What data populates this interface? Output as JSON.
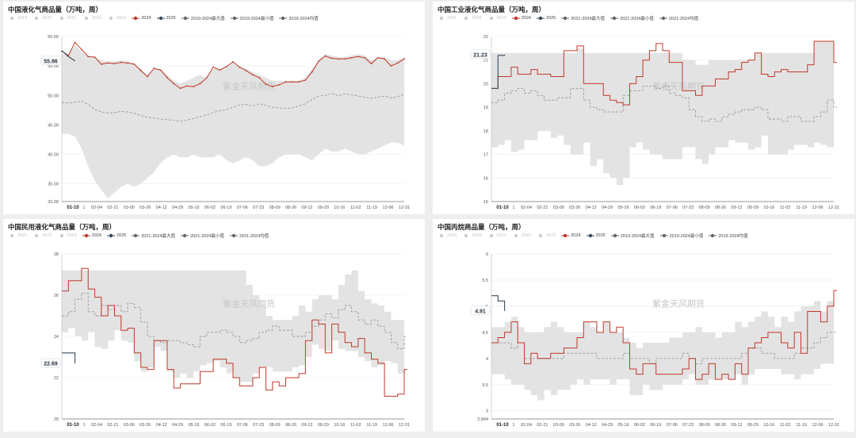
{
  "watermark": "紫金天风期货",
  "colors": {
    "band": "#e3e3e3",
    "series_2024": "#c0392b",
    "series_2025": "#3b4a5c",
    "average": "#999999",
    "inactive_legend": "#cccccc",
    "grid": "#eeeeee"
  },
  "chart_data": [
    {
      "type": "line",
      "title": "中国液化气商品量（万吨，周）",
      "legend": [
        {
          "label": "2019",
          "active": false,
          "kind": "point"
        },
        {
          "label": "2020",
          "active": false,
          "kind": "point"
        },
        {
          "label": "2021",
          "active": false,
          "kind": "point"
        },
        {
          "label": "2022",
          "active": false,
          "kind": "point"
        },
        {
          "label": "2023",
          "active": false,
          "kind": "point"
        },
        {
          "label": "2024",
          "active": true,
          "kind": "red"
        },
        {
          "label": "2025",
          "active": true,
          "kind": "navy"
        },
        {
          "label": "2019-2024最大值",
          "active": true,
          "kind": "gray"
        },
        {
          "label": "2019-2024最小值",
          "active": true,
          "kind": "gray"
        },
        {
          "label": "2019-2024均值",
          "active": true,
          "kind": "gray"
        }
      ],
      "ylim": [
        32,
        60
      ],
      "yticks": [
        32,
        35,
        40,
        45,
        50,
        55,
        60
      ],
      "ytick_labels": [
        "32.00",
        "35.00",
        "40.00",
        "45.00",
        "50.00",
        "55.00",
        "60.00"
      ],
      "step": false,
      "xtick_labels": [
        "01-10",
        "1",
        "02-04",
        "02-21",
        "03-09",
        "03-26",
        "04-12",
        "04-29",
        "05-16",
        "06-02",
        "06-19",
        "07-06",
        "07-23",
        "08-09",
        "08-26",
        "09-12",
        "09-29",
        "10-16",
        "11-02",
        "11-19",
        "12-06",
        "12-31"
      ],
      "callout": "55.86",
      "series_2024": [
        57.5,
        56.8,
        59.0,
        57.8,
        56.6,
        56.5,
        55.3,
        55.5,
        55.4,
        55.6,
        55.5,
        55.3,
        54.2,
        53.2,
        54.6,
        54.3,
        53.0,
        52.0,
        51.2,
        51.6,
        51.5,
        52.0,
        53.0,
        54.8,
        54.3,
        54.9,
        55.7,
        54.8,
        54.2,
        53.5,
        53.0,
        51.9,
        51.5,
        51.8,
        52.3,
        52.3,
        52.3,
        52.6,
        54.0,
        55.8,
        56.7,
        56.3,
        56.2,
        56.2,
        56.4,
        56.6,
        56.4,
        55.4,
        56.4,
        56.2,
        55.0,
        55.5,
        56.2
      ],
      "series_2025": [
        57.6,
        56.6,
        55.86
      ],
      "average": [
        48.8,
        48.7,
        48.9,
        49.0,
        48.5,
        47.6,
        47.2,
        47.0,
        47.1,
        47.3,
        47.2,
        47.0,
        46.6,
        46.3,
        46.2,
        46.0,
        45.9,
        45.8,
        45.6,
        45.8,
        46.1,
        46.4,
        46.7,
        47.1,
        47.4,
        47.6,
        48.0,
        48.4,
        48.5,
        48.2,
        48.6,
        48.3,
        48.0,
        47.9,
        47.8,
        47.9,
        48.2,
        48.6,
        49.3,
        49.9,
        50.0,
        50.4,
        49.9,
        50.3,
        50.1,
        49.9,
        49.7,
        49.5,
        49.7,
        49.9,
        49.6,
        49.8,
        50.2
      ],
      "band_max": [
        57.0,
        57.0,
        58.5,
        57.5,
        56.5,
        56.5,
        56.0,
        55.8,
        55.8,
        56.0,
        55.8,
        55.5,
        54.5,
        53.5,
        54.5,
        54.5,
        53.5,
        52.5,
        52.0,
        52.5,
        53.0,
        53.5,
        53.0,
        54.5,
        54.5,
        55.0,
        55.5,
        55.0,
        54.5,
        54.0,
        53.5,
        53.0,
        52.5,
        52.5,
        52.5,
        52.5,
        52.5,
        53.0,
        54.5,
        56.0,
        57.0,
        56.8,
        56.5,
        56.5,
        56.8,
        57.0,
        56.8,
        56.0,
        56.5,
        56.5,
        56.0,
        56.0,
        56.5
      ],
      "band_min": [
        43.5,
        43.5,
        43.0,
        41.0,
        38.0,
        35.5,
        34.0,
        32.5,
        33.5,
        34.5,
        35.0,
        34.5,
        35.0,
        36.0,
        37.0,
        38.5,
        39.5,
        40.0,
        39.5,
        39.5,
        40.0,
        39.5,
        39.5,
        39.5,
        40.0,
        39.0,
        38.5,
        39.0,
        39.5,
        39.0,
        38.0,
        38.0,
        38.5,
        39.5,
        40.0,
        40.0,
        40.0,
        39.5,
        39.0,
        40.0,
        41.0,
        40.5,
        40.5,
        41.0,
        40.5,
        40.0,
        40.0,
        40.5,
        41.0,
        41.5,
        42.0,
        42.0,
        41.5
      ]
    },
    {
      "type": "line",
      "title": "中国工业液化气商品量（万吨，周）",
      "legend": [
        {
          "label": "2021",
          "active": false,
          "kind": "point"
        },
        {
          "label": "2022",
          "active": false,
          "kind": "point"
        },
        {
          "label": "2023",
          "active": false,
          "kind": "point"
        },
        {
          "label": "2024",
          "active": true,
          "kind": "red"
        },
        {
          "label": "2025",
          "active": true,
          "kind": "navy"
        },
        {
          "label": "2021-2024最大值",
          "active": true,
          "kind": "gray"
        },
        {
          "label": "2021-2024最小值",
          "active": true,
          "kind": "gray"
        },
        {
          "label": "2021-2024均值",
          "active": true,
          "kind": "gray"
        }
      ],
      "ylim": [
        15,
        22
      ],
      "yticks": [
        15,
        16,
        17,
        18,
        19,
        20,
        21,
        22
      ],
      "ytick_labels": [
        "15",
        "16",
        "17",
        "18",
        "19",
        "20",
        "21",
        "22"
      ],
      "step": true,
      "xtick_labels": [
        "01-10",
        "1",
        "02-04",
        "02-21",
        "03-09",
        "03-26",
        "04-12",
        "04-29",
        "05-16",
        "06-02",
        "06-19",
        "07-06",
        "07-23",
        "08-09",
        "08-26",
        "09-12",
        "09-29",
        "10-16",
        "11-02",
        "11-19",
        "12-06",
        "12-31"
      ],
      "callout": "21.23",
      "series_2024": [
        19.8,
        20.3,
        20.3,
        20.7,
        20.4,
        20.4,
        20.6,
        20.4,
        20.4,
        20.3,
        20.3,
        21.4,
        21.4,
        21.6,
        20.0,
        20.0,
        20.0,
        19.5,
        19.3,
        19.2,
        19.1,
        20.0,
        20.3,
        21.0,
        21.4,
        21.7,
        21.4,
        20.9,
        20.9,
        19.7,
        19.7,
        19.5,
        19.9,
        19.9,
        20.2,
        20.2,
        20.5,
        20.6,
        20.9,
        21.0,
        21.3,
        20.4,
        20.3,
        20.5,
        20.6,
        20.5,
        20.5,
        20.5,
        20.8,
        21.8,
        21.8,
        21.8,
        20.9
      ],
      "series_2025": [
        19.8,
        21.2,
        21.23
      ],
      "average": [
        19.2,
        19.3,
        19.6,
        19.7,
        19.8,
        19.6,
        19.7,
        19.5,
        19.3,
        19.3,
        19.4,
        19.4,
        19.8,
        19.8,
        19.3,
        19.0,
        18.9,
        18.8,
        18.8,
        18.8,
        19.5,
        19.7,
        19.7,
        19.9,
        19.9,
        19.8,
        19.9,
        19.6,
        19.5,
        19.4,
        18.9,
        18.6,
        18.4,
        18.5,
        18.4,
        18.6,
        18.7,
        18.8,
        18.9,
        18.9,
        19.0,
        18.9,
        18.5,
        18.5,
        18.4,
        18.6,
        18.6,
        18.4,
        18.4,
        18.6,
        18.8,
        19.3,
        19.0
      ],
      "band_max": [
        21.3,
        21.3,
        21.3,
        21.3,
        21.3,
        21.3,
        21.3,
        21.3,
        21.3,
        21.3,
        21.3,
        21.3,
        21.3,
        21.5,
        21.3,
        21.3,
        21.3,
        21.3,
        21.3,
        21.3,
        21.3,
        21.3,
        21.3,
        21.3,
        21.3,
        21.3,
        21.3,
        21.3,
        21.3,
        21.0,
        21.0,
        20.8,
        20.8,
        21.0,
        21.0,
        21.0,
        21.0,
        21.0,
        21.0,
        21.0,
        21.3,
        21.3,
        21.3,
        21.3,
        21.3,
        21.3,
        21.3,
        21.3,
        21.3,
        21.8,
        21.8,
        21.8,
        21.3
      ],
      "band_min": [
        17.3,
        17.4,
        17.6,
        17.1,
        17.2,
        17.6,
        17.6,
        18.0,
        18.0,
        17.7,
        17.8,
        17.4,
        17.0,
        17.0,
        17.5,
        16.5,
        16.8,
        16.2,
        16.0,
        15.7,
        16.0,
        17.3,
        17.5,
        17.2,
        17.0,
        17.0,
        16.8,
        16.8,
        16.8,
        17.3,
        17.3,
        16.8,
        16.6,
        17.0,
        17.3,
        17.3,
        17.6,
        17.5,
        17.5,
        17.2,
        17.3,
        17.8,
        17.0,
        17.0,
        17.0,
        17.2,
        17.4,
        17.4,
        17.3,
        17.5,
        17.4,
        17.3,
        17.4
      ]
    },
    {
      "type": "line",
      "title": "中国民用液化气商品量（万吨，周）",
      "legend": [
        {
          "label": "2021",
          "active": false,
          "kind": "point"
        },
        {
          "label": "2022",
          "active": false,
          "kind": "point"
        },
        {
          "label": "2023",
          "active": false,
          "kind": "point"
        },
        {
          "label": "2024",
          "active": true,
          "kind": "red"
        },
        {
          "label": "2025",
          "active": true,
          "kind": "navy"
        },
        {
          "label": "2021-2024最大值",
          "active": true,
          "kind": "gray"
        },
        {
          "label": "2021-2024最小值",
          "active": true,
          "kind": "gray"
        },
        {
          "label": "2021-2024均值",
          "active": true,
          "kind": "gray"
        }
      ],
      "ylim": [
        20,
        28
      ],
      "yticks": [
        20,
        22,
        24,
        26,
        28
      ],
      "ytick_labels": [
        "20",
        "22",
        "24",
        "26",
        "28"
      ],
      "step": true,
      "xtick_labels": [
        "01-10",
        "1",
        "02-04",
        "02-21",
        "03-09",
        "03-26",
        "04-12",
        "04-29",
        "05-16",
        "06-02",
        "06-19",
        "07-06",
        "07-23",
        "08-09",
        "08-26",
        "09-12",
        "09-29",
        "10-16",
        "11-02",
        "11-19",
        "12-06",
        "12-31"
      ],
      "callout": "22.69",
      "series_2024": [
        26.2,
        26.7,
        26.7,
        27.3,
        26.3,
        25.9,
        25.0,
        25.5,
        25.0,
        24.3,
        24.4,
        23.2,
        22.5,
        22.4,
        23.8,
        23.8,
        22.4,
        21.5,
        21.7,
        21.7,
        21.7,
        22.3,
        22.3,
        22.9,
        22.9,
        22.7,
        22.0,
        21.6,
        21.6,
        22.0,
        22.5,
        21.4,
        21.8,
        21.6,
        22.0,
        22.0,
        22.2,
        23.8,
        24.8,
        24.6,
        23.2,
        24.6,
        24.2,
        23.7,
        23.5,
        23.9,
        23.2,
        22.9,
        22.7,
        21.1,
        21.1,
        21.2,
        22.4
      ],
      "series_2025": [
        23.2,
        23.2,
        22.69
      ],
      "average": [
        25.0,
        25.2,
        25.8,
        26.1,
        25.2,
        25.0,
        25.5,
        25.3,
        25.5,
        25.2,
        25.6,
        25.4,
        24.7,
        24.0,
        23.8,
        23.7,
        23.8,
        23.8,
        23.7,
        23.6,
        23.5,
        24.0,
        24.2,
        24.2,
        24.3,
        24.2,
        24.0,
        23.7,
        23.8,
        23.9,
        24.2,
        24.3,
        24.5,
        24.3,
        24.3,
        24.0,
        24.0,
        24.2,
        24.5,
        24.8,
        25.1,
        24.9,
        25.3,
        25.5,
        25.2,
        24.8,
        24.6,
        24.8,
        24.5,
        24.2,
        23.7,
        23.4,
        24.0
      ],
      "band_max": [
        27.2,
        27.2,
        27.2,
        27.2,
        27.2,
        27.2,
        27.2,
        27.2,
        27.2,
        27.2,
        27.2,
        27.2,
        27.2,
        27.2,
        27.2,
        27.2,
        27.2,
        27.2,
        27.2,
        27.2,
        27.2,
        27.2,
        27.2,
        27.2,
        27.2,
        27.2,
        27.2,
        27.2,
        26.5,
        26.0,
        25.5,
        25.0,
        24.8,
        24.8,
        24.8,
        25.0,
        25.5,
        25.2,
        25.8,
        26.0,
        26.0,
        25.8,
        26.5,
        27.0,
        27.2,
        26.2,
        25.8,
        25.6,
        25.5,
        25.2,
        24.8,
        24.8,
        26.2
      ],
      "band_max_note": "",
      "band_min": [
        24.2,
        24.4,
        24.0,
        23.8,
        24.2,
        23.5,
        23.4,
        23.8,
        24.3,
        23.8,
        23.7,
        22.8,
        22.3,
        22.5,
        23.5,
        23.3,
        22.3,
        22.0,
        22.2,
        22.0,
        22.3,
        22.6,
        22.7,
        22.8,
        22.5,
        22.2,
        22.0,
        21.8,
        21.8,
        22.2,
        22.5,
        22.5,
        22.3,
        22.3,
        22.3,
        22.5,
        22.6,
        23.0,
        23.6,
        23.4,
        23.3,
        23.8,
        23.4,
        23.3,
        23.3,
        23.0,
        22.8,
        22.5,
        22.6,
        22.8,
        22.7,
        22.2,
        22.5
      ]
    },
    {
      "type": "line",
      "title": "中国丙烷商品量（万吨，周）",
      "legend": [
        {
          "label": "2019",
          "active": false,
          "kind": "point"
        },
        {
          "label": "2020",
          "active": false,
          "kind": "point"
        },
        {
          "label": "2021",
          "active": false,
          "kind": "point"
        },
        {
          "label": "2022",
          "active": false,
          "kind": "point"
        },
        {
          "label": "2023",
          "active": false,
          "kind": "point"
        },
        {
          "label": "2024",
          "active": true,
          "kind": "red"
        },
        {
          "label": "2025",
          "active": true,
          "kind": "navy"
        },
        {
          "label": "2019-2024最大值",
          "active": true,
          "kind": "gray"
        },
        {
          "label": "2019-2024最小值",
          "active": true,
          "kind": "gray"
        },
        {
          "label": "2019-2024均值",
          "active": true,
          "kind": "gray"
        }
      ],
      "ylim": [
        2.844,
        6
      ],
      "yticks": [
        2.844,
        3,
        3.5,
        4,
        4.5,
        5,
        5.5,
        6
      ],
      "ytick_labels": [
        "2.844",
        "3",
        "3.5",
        "4",
        "4.5",
        "5",
        "5.5",
        "6"
      ],
      "step": true,
      "xtick_labels": [
        "01-10",
        "1",
        "02-04",
        "02-21",
        "03-09",
        "03-26",
        "04-12",
        "04-29",
        "05-16",
        "06-02",
        "06-19",
        "07-06",
        "07-23",
        "08-09",
        "08-26",
        "09-12",
        "09-29",
        "10-16",
        "11-02",
        "11-19",
        "12-06",
        "12-31"
      ],
      "callout": "4.91",
      "series_2024": [
        4.3,
        4.4,
        4.5,
        4.7,
        4.3,
        3.9,
        4.1,
        4.0,
        4.0,
        4.1,
        4.1,
        4.2,
        4.2,
        4.4,
        4.7,
        4.7,
        4.5,
        4.7,
        4.5,
        4.6,
        4.3,
        3.8,
        3.7,
        3.9,
        3.9,
        3.7,
        3.7,
        3.7,
        3.7,
        3.8,
        4.0,
        3.6,
        3.7,
        3.9,
        3.6,
        3.7,
        3.6,
        3.9,
        3.7,
        4.2,
        4.3,
        4.4,
        4.5,
        4.5,
        4.3,
        4.2,
        4.5,
        4.1,
        4.9,
        4.9,
        4.7,
        5.0,
        5.3
      ],
      "series_2025": [
        5.2,
        5.1,
        4.91
      ],
      "average": [
        4.3,
        4.3,
        4.3,
        4.2,
        4.3,
        4.0,
        4.0,
        4.0,
        4.0,
        4.0,
        4.0,
        4.1,
        4.1,
        4.1,
        4.1,
        4.1,
        4.0,
        4.0,
        4.0,
        4.0,
        4.1,
        4.0,
        4.0,
        4.0,
        3.9,
        4.0,
        4.0,
        4.0,
        4.0,
        4.1,
        4.0,
        3.9,
        4.0,
        4.0,
        4.0,
        4.0,
        4.0,
        4.0,
        4.1,
        4.2,
        4.2,
        4.1,
        4.1,
        4.0,
        4.0,
        4.0,
        4.1,
        4.2,
        4.2,
        4.3,
        4.4,
        4.5,
        4.5
      ],
      "band_max": [
        4.6,
        4.6,
        4.7,
        4.8,
        4.6,
        4.5,
        4.5,
        4.5,
        4.6,
        4.7,
        4.6,
        4.5,
        4.5,
        4.5,
        4.7,
        4.6,
        4.5,
        4.7,
        4.5,
        4.5,
        4.4,
        4.3,
        4.2,
        4.3,
        4.3,
        4.3,
        4.3,
        4.4,
        4.4,
        4.5,
        4.5,
        4.6,
        4.5,
        4.5,
        4.4,
        4.5,
        4.5,
        4.7,
        4.6,
        4.7,
        4.8,
        4.9,
        4.8,
        4.6,
        4.8,
        4.7,
        4.9,
        5.0,
        5.0,
        5.1,
        4.9,
        5.1,
        5.3
      ],
      "band_min": [
        3.7,
        3.7,
        3.6,
        3.5,
        3.5,
        3.4,
        3.3,
        3.2,
        3.4,
        3.3,
        3.4,
        3.4,
        3.5,
        3.6,
        3.5,
        3.6,
        3.6,
        3.6,
        3.5,
        3.6,
        3.6,
        3.3,
        3.3,
        3.5,
        3.4,
        3.4,
        3.5,
        3.5,
        3.5,
        3.6,
        3.7,
        3.5,
        3.5,
        3.6,
        3.6,
        3.6,
        3.6,
        3.7,
        3.5,
        3.7,
        3.8,
        3.8,
        3.8,
        3.8,
        3.7,
        3.7,
        3.6,
        3.7,
        3.7,
        3.8,
        3.9,
        3.9,
        3.8
      ]
    }
  ]
}
